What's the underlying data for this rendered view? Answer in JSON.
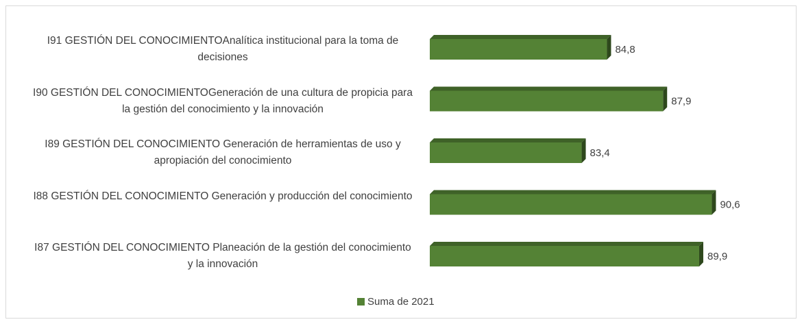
{
  "chart_data": {
    "type": "bar3d_horizontal",
    "categories": [
      "I91 GESTIÓN DEL CONOCIMIENTOAnalítica institucional para la toma de decisiones",
      "I90 GESTIÓN DEL CONOCIMIENTOGeneración de una cultura de propicia para la gestión del conocimiento y la innovación",
      "I89 GESTIÓN DEL CONOCIMIENTO Generación de herramientas de uso y apropiación del conocimiento",
      "I88 GESTIÓN DEL CONOCIMIENTO Generación y producción del conocimiento",
      "I87 GESTIÓN DEL CONOCIMIENTO Planeación de la gestión del conocimiento y la innovación"
    ],
    "series": [
      {
        "name": "Suma de 2021",
        "color": "#548235",
        "values": [
          84.8,
          87.9,
          83.4,
          90.6,
          89.9
        ],
        "value_labels": [
          "84,8",
          "87,9",
          "83,4",
          "90,6",
          "89,9"
        ]
      }
    ],
    "xlim": [
      75,
      91
    ]
  }
}
